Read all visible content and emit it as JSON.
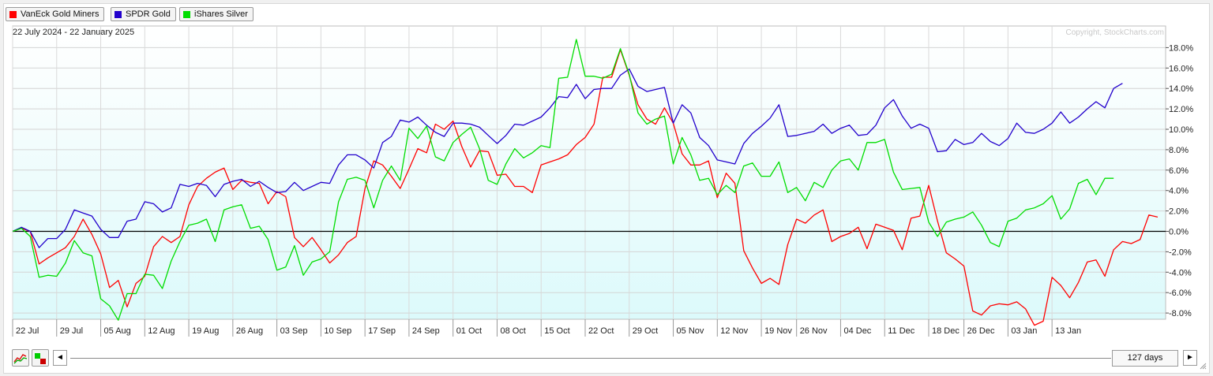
{
  "legend": [
    {
      "name": "VanEck Gold Miners",
      "color": "#ff0000"
    },
    {
      "name": "SPDR Gold",
      "color": "#2200cc"
    },
    {
      "name": "iShares Silver",
      "color": "#00dd00"
    }
  ],
  "chart_data": {
    "type": "line",
    "date_range": "22 July 2024 - 22 January 2025",
    "copyright": "Copyright, StockCharts.com",
    "ylim": [
      -9,
      19.5
    ],
    "y_ticks": [
      "18.0%",
      "16.0%",
      "14.0%",
      "12.0%",
      "10.0%",
      "8.0%",
      "6.0%",
      "4.0%",
      "2.0%",
      "0.0%",
      "-2.0%",
      "-4.0%",
      "-6.0%",
      "-8.0%"
    ],
    "y_tick_values": [
      18,
      16,
      14,
      12,
      10,
      8,
      6,
      4,
      2,
      0,
      -2,
      -4,
      -6,
      -8
    ],
    "x_ticks": [
      "22 Jul",
      "29 Jul",
      "05 Aug",
      "12 Aug",
      "19 Aug",
      "26 Aug",
      "03 Sep",
      "10 Sep",
      "17 Sep",
      "24 Sep",
      "01 Oct",
      "08 Oct",
      "15 Oct",
      "22 Oct",
      "29 Oct",
      "05 Nov",
      "12 Nov",
      "19 Nov",
      "26 Nov",
      "04 Dec",
      "11 Dec",
      "18 Dec",
      "26 Dec",
      "03 Jan",
      "13 Jan"
    ],
    "x_tick_index": [
      0,
      5,
      10,
      15,
      20,
      25,
      30,
      35,
      40,
      45,
      50,
      55,
      60,
      65,
      70,
      75,
      80,
      85,
      89,
      94,
      99,
      104,
      108,
      113,
      118
    ],
    "grid": true,
    "legend_position": "top-left",
    "series": [
      {
        "name": "VanEck Gold Miners",
        "color": "#ff0000",
        "values": [
          0,
          0.3,
          0,
          -3.2,
          -2.6,
          -2.1,
          -1.6,
          -0.5,
          1.2,
          -0.3,
          -2.2,
          -5.5,
          -4.8,
          -7.4,
          -5.1,
          -4.4,
          -1.5,
          -0.5,
          -1.1,
          -0.5,
          2.6,
          4.4,
          5.2,
          5.8,
          6.2,
          4.1,
          5.0,
          4.8,
          4.7,
          2.7,
          3.9,
          3.4,
          -0.6,
          -1.5,
          -0.6,
          -1.8,
          -3.1,
          -2.3,
          -1.1,
          -0.5,
          4.2,
          6.9,
          6.5,
          5.4,
          4.2,
          6.1,
          8.1,
          7.7,
          10.5,
          10.0,
          10.8,
          8.3,
          6.3,
          7.9,
          7.8,
          5.5,
          5.6,
          4.4,
          4.4,
          3.8,
          6.5,
          6.8,
          7.1,
          7.5,
          8.5,
          9.2,
          10.5,
          15.1,
          15.1,
          17.8,
          15.3,
          12.4,
          11.0,
          10.5,
          12.1,
          10.6,
          7.6,
          6.5,
          6.5,
          6.9,
          3.3,
          5.7,
          4.7,
          -1.9,
          -3.6,
          -5.1,
          -4.6,
          -5.2,
          -1.3,
          1.2,
          0.8,
          1.6,
          2.1,
          -1.0,
          -0.5,
          -0.2,
          0.4,
          -1.7,
          0.7,
          0.4,
          0.1,
          -1.8,
          1.3,
          1.5,
          4.5,
          1.0,
          -2.1,
          -2.7,
          -3.4,
          -7.8,
          -8.2,
          -7.3,
          -7.1,
          -7.2,
          -6.9,
          -7.6,
          -9.2,
          -8.8,
          -4.5,
          -5.3,
          -6.5,
          -5.0,
          -3.0,
          -2.8,
          -4.4,
          -1.8,
          -1.0,
          -1.2,
          -0.8,
          1.6,
          1.4
        ]
      },
      {
        "name": "SPDR Gold",
        "color": "#2200cc",
        "values": [
          0,
          0.4,
          0,
          -1.6,
          -0.7,
          -0.7,
          0.2,
          2.1,
          1.8,
          1.5,
          0.2,
          -0.6,
          -0.6,
          1.0,
          1.2,
          2.9,
          2.7,
          1.9,
          2.3,
          4.6,
          4.4,
          4.7,
          4.5,
          3.4,
          4.6,
          4.9,
          5.1,
          4.4,
          4.9,
          4.3,
          3.8,
          3.9,
          4.8,
          4.0,
          4.4,
          4.8,
          4.7,
          6.5,
          7.5,
          7.5,
          7.0,
          6.2,
          8.7,
          9.3,
          10.9,
          10.7,
          11.2,
          10.4,
          9.7,
          9.3,
          10.6,
          10.6,
          10.5,
          10.2,
          9.4,
          8.6,
          9.4,
          10.5,
          10.4,
          10.8,
          11.2,
          12.1,
          13.2,
          13.1,
          14.4,
          13.0,
          13.9,
          14.0,
          14.0,
          15.3,
          15.9,
          14.2,
          13.7,
          13.9,
          14.1,
          10.6,
          12.4,
          11.6,
          9.2,
          8.4,
          7.0,
          6.8,
          6.6,
          8.6,
          9.6,
          10.3,
          11.1,
          12.4,
          9.3,
          9.4,
          9.6,
          9.8,
          10.5,
          9.6,
          10.1,
          10.4,
          9.4,
          9.5,
          10.4,
          12.1,
          12.9,
          11.3,
          10.1,
          10.5,
          10.1,
          7.8,
          7.9,
          9.0,
          8.5,
          8.7,
          9.6,
          8.8,
          8.4,
          9.1,
          10.6,
          9.7,
          9.6,
          10.0,
          10.6,
          11.7,
          10.6,
          11.2,
          12.0,
          12.7,
          12.1,
          14.0,
          14.5
        ]
      },
      {
        "name": "iShares Silver",
        "color": "#00dd00",
        "values": [
          0,
          0.3,
          -0.5,
          -4.5,
          -4.3,
          -4.4,
          -3.1,
          -0.9,
          -2.1,
          -2.4,
          -6.6,
          -7.3,
          -8.7,
          -6.1,
          -6.1,
          -4.2,
          -4.3,
          -5.6,
          -2.9,
          -1.0,
          0.6,
          0.8,
          1.2,
          -1.0,
          2.1,
          2.4,
          2.6,
          0.3,
          0.5,
          -0.8,
          -3.8,
          -3.5,
          -1.4,
          -4.3,
          -3.0,
          -2.7,
          -2.0,
          2.9,
          5.1,
          5.3,
          5.0,
          2.3,
          5.0,
          6.4,
          5.0,
          10.1,
          9.1,
          10.3,
          7.3,
          6.9,
          8.7,
          9.5,
          10.2,
          8.1,
          5.0,
          4.6,
          6.6,
          8.1,
          7.2,
          7.7,
          8.4,
          8.2,
          15.0,
          15.1,
          18.8,
          15.2,
          15.2,
          15.0,
          15.4,
          17.9,
          15.4,
          11.6,
          10.5,
          11.0,
          11.3,
          6.6,
          9.2,
          7.5,
          5.0,
          5.2,
          3.6,
          4.5,
          3.8,
          6.4,
          6.7,
          5.4,
          5.4,
          6.8,
          3.8,
          4.3,
          3.0,
          4.8,
          4.3,
          6.0,
          6.9,
          7.1,
          6.0,
          8.7,
          8.7,
          9.0,
          5.8,
          4.1,
          4.2,
          4.3,
          0.9,
          -0.5,
          0.9,
          1.2,
          1.4,
          1.9,
          0.6,
          -1.1,
          -1.5,
          1.0,
          1.3,
          2.1,
          2.3,
          2.7,
          3.5,
          1.2,
          2.2,
          4.7,
          5.1,
          3.6,
          5.2,
          5.2
        ]
      }
    ]
  },
  "controls": {
    "days_label": "127 days",
    "left_arrow": "◄",
    "right_arrow": "►"
  }
}
